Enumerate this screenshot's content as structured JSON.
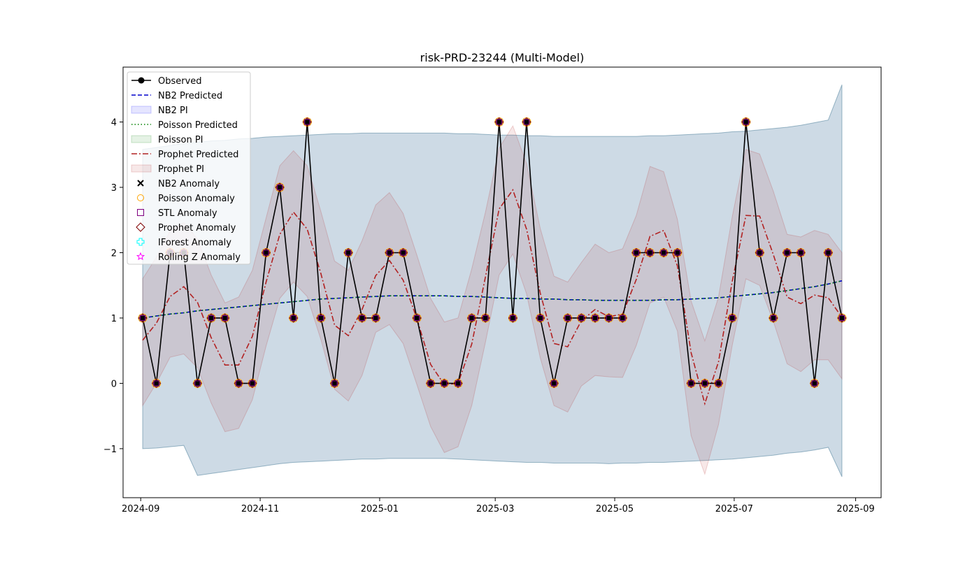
{
  "chart_data": {
    "type": "line",
    "title": "risk-PRD-23244 (Multi-Model)",
    "xlabel": "",
    "ylabel": "",
    "x_range": [
      "2024-08-23",
      "2025-09-14"
    ],
    "ylim": [
      -1.75,
      4.84
    ],
    "x_ticks": [
      {
        "date": "2024-09-01",
        "label": "2024-09"
      },
      {
        "date": "2024-11-01",
        "label": "2024-11"
      },
      {
        "date": "2025-01-01",
        "label": "2025-01"
      },
      {
        "date": "2025-03-01",
        "label": "2025-03"
      },
      {
        "date": "2025-05-01",
        "label": "2025-05"
      },
      {
        "date": "2025-07-01",
        "label": "2025-07"
      },
      {
        "date": "2025-09-01",
        "label": "2025-09"
      }
    ],
    "y_ticks": [
      {
        "value": -1,
        "label": "−1"
      },
      {
        "value": 0,
        "label": "0"
      },
      {
        "value": 1,
        "label": "1"
      },
      {
        "value": 2,
        "label": "2"
      },
      {
        "value": 3,
        "label": "3"
      },
      {
        "value": 4,
        "label": "4"
      }
    ],
    "grid": false,
    "legend_position": "top-left",
    "dates": [
      "2024-09-02",
      "2024-09-09",
      "2024-09-16",
      "2024-09-23",
      "2024-09-30",
      "2024-10-07",
      "2024-10-14",
      "2024-10-21",
      "2024-10-28",
      "2024-11-04",
      "2024-11-11",
      "2024-11-18",
      "2024-11-25",
      "2024-12-02",
      "2024-12-09",
      "2024-12-16",
      "2024-12-23",
      "2024-12-30",
      "2025-01-06",
      "2025-01-13",
      "2025-01-20",
      "2025-01-27",
      "2025-02-03",
      "2025-02-10",
      "2025-02-17",
      "2025-02-24",
      "2025-03-03",
      "2025-03-10",
      "2025-03-17",
      "2025-03-24",
      "2025-03-31",
      "2025-04-07",
      "2025-04-14",
      "2025-04-21",
      "2025-04-28",
      "2025-05-05",
      "2025-05-12",
      "2025-05-19",
      "2025-05-26",
      "2025-06-02",
      "2025-06-09",
      "2025-06-16",
      "2025-06-23",
      "2025-06-30",
      "2025-07-07",
      "2025-07-14",
      "2025-07-21",
      "2025-07-28",
      "2025-08-04",
      "2025-08-11",
      "2025-08-18",
      "2025-08-25"
    ],
    "series": [
      {
        "name": "Observed",
        "color": "#000000",
        "values": [
          1,
          0,
          2,
          2,
          0,
          1,
          1,
          0,
          0,
          2,
          3,
          1,
          4,
          1,
          0,
          2,
          1,
          1,
          2,
          2,
          1,
          0,
          0,
          0,
          1,
          1,
          4,
          1,
          4,
          1,
          0,
          1,
          1,
          1,
          1,
          1,
          2,
          2,
          2,
          2,
          0,
          0,
          0,
          1,
          4,
          2,
          1,
          2,
          2,
          0,
          2,
          1
        ]
      },
      {
        "name": "NB2 Predicted",
        "color": "#0000cc",
        "values": [
          1.0,
          1.03,
          1.06,
          1.08,
          1.11,
          1.13,
          1.15,
          1.17,
          1.19,
          1.21,
          1.23,
          1.25,
          1.27,
          1.29,
          1.3,
          1.31,
          1.32,
          1.33,
          1.34,
          1.34,
          1.34,
          1.34,
          1.34,
          1.33,
          1.33,
          1.32,
          1.31,
          1.3,
          1.3,
          1.29,
          1.29,
          1.28,
          1.28,
          1.27,
          1.27,
          1.27,
          1.27,
          1.27,
          1.28,
          1.28,
          1.29,
          1.3,
          1.31,
          1.33,
          1.35,
          1.37,
          1.39,
          1.42,
          1.45,
          1.48,
          1.52,
          1.57
        ]
      },
      {
        "name": "Poisson Predicted",
        "color": "#008000",
        "values": [
          1.0,
          1.03,
          1.06,
          1.08,
          1.11,
          1.13,
          1.15,
          1.17,
          1.19,
          1.21,
          1.23,
          1.25,
          1.27,
          1.29,
          1.3,
          1.31,
          1.32,
          1.33,
          1.34,
          1.34,
          1.34,
          1.34,
          1.34,
          1.33,
          1.33,
          1.32,
          1.31,
          1.3,
          1.3,
          1.29,
          1.29,
          1.28,
          1.28,
          1.27,
          1.27,
          1.27,
          1.27,
          1.27,
          1.28,
          1.28,
          1.29,
          1.3,
          1.31,
          1.33,
          1.35,
          1.37,
          1.39,
          1.42,
          1.45,
          1.48,
          1.52,
          1.57
        ]
      },
      {
        "name": "Prophet Predicted",
        "color": "#b22222",
        "values": [
          0.66,
          0.92,
          1.33,
          1.48,
          1.24,
          0.7,
          0.28,
          0.28,
          0.72,
          1.55,
          2.28,
          2.62,
          2.36,
          1.68,
          0.89,
          0.73,
          1.13,
          1.65,
          1.88,
          1.58,
          0.99,
          0.29,
          -0.02,
          0.0,
          0.6,
          1.63,
          2.67,
          2.96,
          2.36,
          1.38,
          0.61,
          0.56,
          0.96,
          1.13,
          1.02,
          1.06,
          1.59,
          2.25,
          2.34,
          1.8,
          0.47,
          -0.31,
          0.33,
          1.56,
          2.57,
          2.56,
          1.97,
          1.32,
          1.22,
          1.35,
          1.31,
          1.01
        ]
      }
    ],
    "intervals": [
      {
        "name": "NB2 PI",
        "color": "#0000ff",
        "lower": [
          -1.0,
          -0.99,
          -0.97,
          -0.95,
          -1.41,
          -1.38,
          -1.35,
          -1.32,
          -1.29,
          -1.26,
          -1.23,
          -1.21,
          -1.2,
          -1.19,
          -1.18,
          -1.17,
          -1.16,
          -1.16,
          -1.15,
          -1.15,
          -1.15,
          -1.15,
          -1.15,
          -1.16,
          -1.17,
          -1.18,
          -1.19,
          -1.2,
          -1.21,
          -1.21,
          -1.22,
          -1.22,
          -1.22,
          -1.22,
          -1.23,
          -1.22,
          -1.22,
          -1.21,
          -1.21,
          -1.2,
          -1.19,
          -1.18,
          -1.17,
          -1.16,
          -1.14,
          -1.12,
          -1.1,
          -1.07,
          -1.05,
          -1.02,
          -0.98,
          -1.43
        ],
        "upper": [
          3.58,
          3.61,
          3.64,
          3.67,
          3.69,
          3.71,
          3.72,
          3.74,
          3.75,
          3.77,
          3.78,
          3.79,
          3.8,
          3.81,
          3.82,
          3.82,
          3.83,
          3.83,
          3.83,
          3.83,
          3.83,
          3.83,
          3.83,
          3.82,
          3.82,
          3.81,
          3.8,
          3.8,
          3.79,
          3.79,
          3.78,
          3.78,
          3.78,
          3.78,
          3.78,
          3.78,
          3.78,
          3.79,
          3.79,
          3.8,
          3.81,
          3.82,
          3.83,
          3.85,
          3.86,
          3.88,
          3.9,
          3.92,
          3.95,
          3.99,
          4.03,
          4.57
        ]
      },
      {
        "name": "Poisson PI",
        "color": "#008000",
        "lower": [
          -1.0,
          -0.99,
          -0.97,
          -0.95,
          -1.41,
          -1.38,
          -1.35,
          -1.32,
          -1.29,
          -1.26,
          -1.23,
          -1.21,
          -1.2,
          -1.19,
          -1.18,
          -1.17,
          -1.16,
          -1.16,
          -1.15,
          -1.15,
          -1.15,
          -1.15,
          -1.15,
          -1.16,
          -1.17,
          -1.18,
          -1.19,
          -1.2,
          -1.21,
          -1.21,
          -1.22,
          -1.22,
          -1.22,
          -1.22,
          -1.23,
          -1.22,
          -1.22,
          -1.21,
          -1.21,
          -1.2,
          -1.19,
          -1.18,
          -1.17,
          -1.16,
          -1.14,
          -1.12,
          -1.1,
          -1.07,
          -1.05,
          -1.02,
          -0.98,
          -1.43
        ],
        "upper": [
          3.58,
          3.61,
          3.64,
          3.67,
          3.69,
          3.71,
          3.72,
          3.74,
          3.75,
          3.77,
          3.78,
          3.79,
          3.8,
          3.81,
          3.82,
          3.82,
          3.83,
          3.83,
          3.83,
          3.83,
          3.83,
          3.83,
          3.83,
          3.82,
          3.82,
          3.81,
          3.8,
          3.8,
          3.79,
          3.79,
          3.78,
          3.78,
          3.78,
          3.78,
          3.78,
          3.78,
          3.78,
          3.79,
          3.79,
          3.8,
          3.81,
          3.82,
          3.83,
          3.85,
          3.86,
          3.88,
          3.9,
          3.92,
          3.95,
          3.99,
          4.03,
          4.57
        ]
      },
      {
        "name": "Prophet PI",
        "color": "#b22222",
        "lower": [
          -0.34,
          0.0,
          0.4,
          0.45,
          0.24,
          -0.3,
          -0.74,
          -0.69,
          -0.25,
          0.57,
          1.3,
          1.55,
          1.33,
          0.67,
          -0.09,
          -0.27,
          0.12,
          0.78,
          0.9,
          0.61,
          -0.02,
          -0.66,
          -1.06,
          -0.97,
          -0.34,
          0.63,
          1.66,
          1.98,
          1.37,
          0.39,
          -0.34,
          -0.44,
          -0.04,
          0.12,
          0.1,
          0.09,
          0.58,
          1.23,
          1.32,
          0.8,
          -0.8,
          -1.39,
          -0.63,
          0.58,
          1.6,
          1.5,
          0.95,
          0.3,
          0.18,
          0.36,
          0.36,
          0.07
        ],
        "upper": [
          1.6,
          1.93,
          2.33,
          2.46,
          2.21,
          1.66,
          1.23,
          1.32,
          1.73,
          2.53,
          3.33,
          3.56,
          3.33,
          2.63,
          1.87,
          1.73,
          2.18,
          2.73,
          2.92,
          2.6,
          1.96,
          1.3,
          0.94,
          1.0,
          1.75,
          2.62,
          3.6,
          3.94,
          3.36,
          2.37,
          1.64,
          1.55,
          1.85,
          2.13,
          2.0,
          2.06,
          2.57,
          3.32,
          3.24,
          2.51,
          1.26,
          0.65,
          1.32,
          2.55,
          3.58,
          3.51,
          2.94,
          2.28,
          2.24,
          2.34,
          2.28,
          2.0
        ]
      }
    ],
    "legend": [
      {
        "label": "Observed",
        "style": "line-marker",
        "color": "#000000"
      },
      {
        "label": "NB2 Predicted",
        "style": "dashed",
        "color": "#0000cc"
      },
      {
        "label": "NB2 PI",
        "style": "patch",
        "color": "#0000ff"
      },
      {
        "label": "Poisson Predicted",
        "style": "dotted",
        "color": "#008000"
      },
      {
        "label": "Poisson PI",
        "style": "patch",
        "color": "#008000"
      },
      {
        "label": "Prophet Predicted",
        "style": "dashdot",
        "color": "#b22222"
      },
      {
        "label": "Prophet PI",
        "style": "patch",
        "color": "#b22222"
      },
      {
        "label": "NB2 Anomaly",
        "style": "x",
        "color": "#000000"
      },
      {
        "label": "Poisson Anomaly",
        "style": "circle",
        "color": "#ffa500"
      },
      {
        "label": "STL Anomaly",
        "style": "square",
        "color": "#800080"
      },
      {
        "label": "Prophet Anomaly",
        "style": "diamond",
        "color": "#800000"
      },
      {
        "label": "IForest Anomaly",
        "style": "plus",
        "color": "#00ffff"
      },
      {
        "label": "Rolling Z Anomaly",
        "style": "star",
        "color": "#ff00ff"
      }
    ]
  }
}
